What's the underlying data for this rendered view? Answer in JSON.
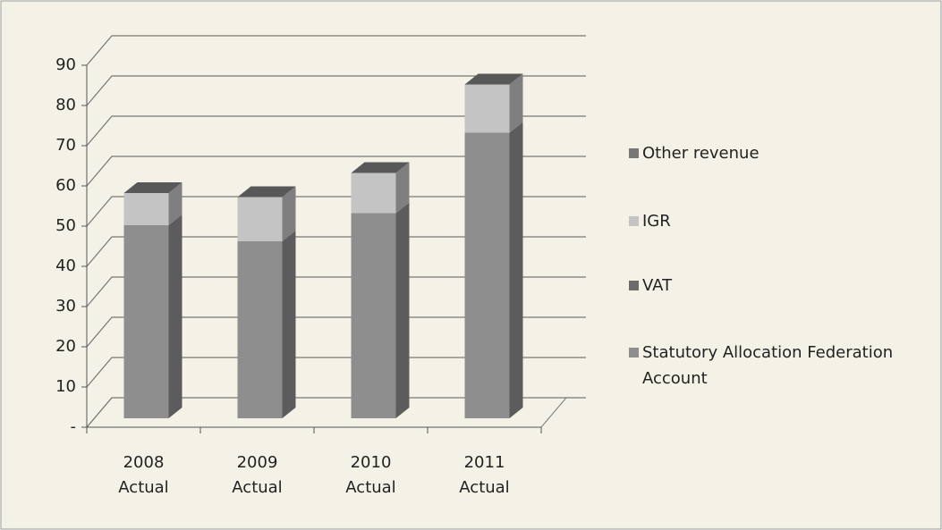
{
  "chart_data": {
    "type": "bar3d_stacked",
    "categories": [
      "2008\nActual",
      "2009\nActual",
      "2010\nActual",
      "2011\nActual"
    ],
    "series": [
      {
        "name": "Statutory Allocation Federation Account",
        "color": "#8e8e8e",
        "values": [
          48,
          44,
          51,
          71
        ]
      },
      {
        "name": "VAT",
        "color": "#6c6c6c",
        "values": [
          0,
          0,
          0,
          0
        ]
      },
      {
        "name": "IGR",
        "color": "#c4c4c4",
        "values": [
          8,
          11,
          10,
          12
        ]
      },
      {
        "name": "Other revenue",
        "color": "#777777",
        "values": [
          0,
          0,
          0,
          0
        ]
      }
    ],
    "ylim": [
      0,
      90
    ],
    "yticks": [
      {
        "value": 0,
        "label": "-"
      },
      10,
      20,
      30,
      40,
      50,
      60,
      70,
      80,
      90
    ],
    "grid": true,
    "legend": "right"
  }
}
